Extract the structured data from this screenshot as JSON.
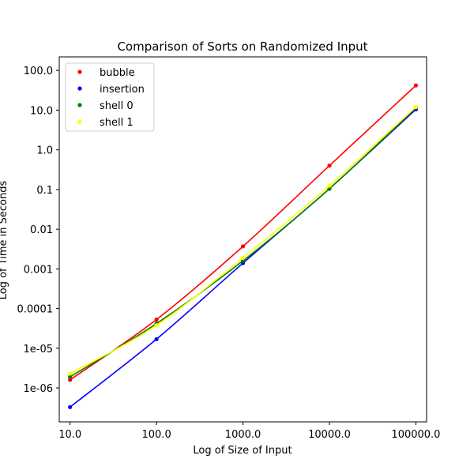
{
  "chart_data": {
    "type": "line",
    "title": "Comparison of Sorts on Randomized Input",
    "xlabel": "Log of Size of Input",
    "ylabel": "Log of Time in Seconds",
    "x_scale": "log",
    "y_scale": "log",
    "xlim": [
      7.5,
      133000
    ],
    "ylim": [
      1.4e-07,
      220
    ],
    "x_ticks": [
      {
        "value": 10,
        "label": "10.0"
      },
      {
        "value": 100,
        "label": "100.0"
      },
      {
        "value": 1000,
        "label": "1000.0"
      },
      {
        "value": 10000,
        "label": "10000.0"
      },
      {
        "value": 100000,
        "label": "100000.0"
      }
    ],
    "y_ticks": [
      {
        "value": 1e-06,
        "label": "1e-06"
      },
      {
        "value": 1e-05,
        "label": "1e-05"
      },
      {
        "value": 0.0001,
        "label": "0.0001"
      },
      {
        "value": 0.001,
        "label": "0.001"
      },
      {
        "value": 0.01,
        "label": "0.01"
      },
      {
        "value": 0.1,
        "label": "0.1"
      },
      {
        "value": 1,
        "label": "1.0"
      },
      {
        "value": 10,
        "label": "10.0"
      },
      {
        "value": 100,
        "label": "100.0"
      }
    ],
    "grid": false,
    "legend_position": "top-left",
    "x": [
      10,
      100,
      1000,
      10000,
      100000
    ],
    "series": [
      {
        "name": "bubble",
        "color": "#ff0000",
        "values": [
          1.6e-06,
          5.3e-05,
          0.0037,
          0.4,
          42
        ]
      },
      {
        "name": "insertion",
        "color": "#0000ff",
        "values": [
          3.3e-07,
          1.7e-05,
          0.0014,
          0.105,
          10.5
        ]
      },
      {
        "name": "shell 0",
        "color": "#008000",
        "values": [
          1.9e-06,
          4.2e-05,
          0.0016,
          0.105,
          11.5
        ]
      },
      {
        "name": "shell 1",
        "color": "#ffff00",
        "values": [
          2.3e-06,
          3.8e-05,
          0.0019,
          0.125,
          12.0
        ]
      }
    ]
  }
}
